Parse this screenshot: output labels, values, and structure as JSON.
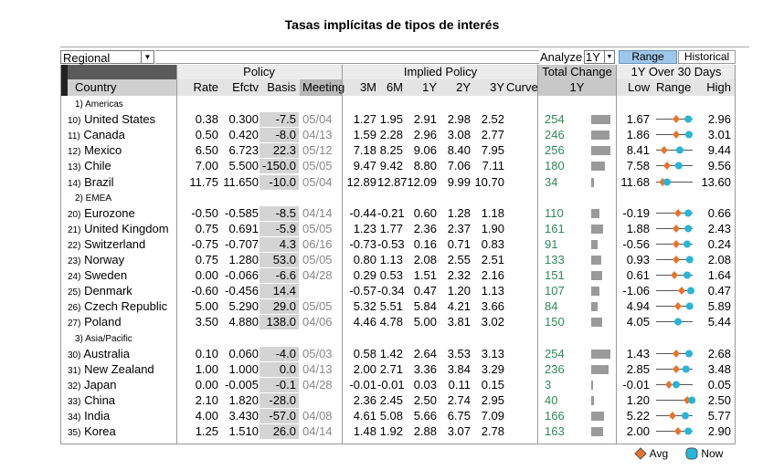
{
  "title": "Tasas implícitas de tipos de interés",
  "toolbar": {
    "region": "Regional",
    "analyze_label": "Analyze",
    "period": "1Y",
    "tab_range": "Range",
    "tab_historical": "Historical"
  },
  "headers": {
    "policy": "Policy",
    "implied": "Implied Policy",
    "total_change": "Total Change",
    "over30": "1Y Over 30 Days",
    "country": "Country",
    "rate": "Rate",
    "efctv": "Efctv",
    "basis": "Basis",
    "meeting": "Meeting",
    "m3": "3M",
    "m6": "6M",
    "y1": "1Y",
    "y2": "2Y",
    "y3": "3Y",
    "curve": "Curve",
    "tc1y": "1Y",
    "low": "Low",
    "range": "Range",
    "high": "High"
  },
  "regions": [
    {
      "label": "1) Americas",
      "rows": [
        {
          "num": "10)",
          "country": "United States",
          "rate": "0.38",
          "efctv": "0.300",
          "basis": "-7.5",
          "meeting": "05/04",
          "m3": "1.27",
          "m6": "1.95",
          "y1": "2.91",
          "y2": "2.98",
          "y3": "2.52",
          "tc": "254",
          "tc_val": 254,
          "low": "1.67",
          "high": "2.96",
          "avg": 0.55,
          "now": 0.88
        },
        {
          "num": "11)",
          "country": "Canada",
          "rate": "0.50",
          "efctv": "0.420",
          "basis": "-8.0",
          "meeting": "04/13",
          "m3": "1.59",
          "m6": "2.28",
          "y1": "2.96",
          "y2": "3.08",
          "y3": "2.77",
          "tc": "246",
          "tc_val": 246,
          "low": "1.86",
          "high": "3.01",
          "avg": 0.55,
          "now": 0.9
        },
        {
          "num": "12)",
          "country": "Mexico",
          "rate": "6.50",
          "efctv": "6.723",
          "basis": "22.3",
          "meeting": "05/12",
          "m3": "7.18",
          "m6": "8.25",
          "y1": "9.06",
          "y2": "8.40",
          "y3": "7.95",
          "tc": "256",
          "tc_val": 256,
          "low": "8.41",
          "high": "9.44",
          "avg": 0.22,
          "now": 0.65
        },
        {
          "num": "13)",
          "country": "Chile",
          "rate": "7.00",
          "efctv": "5.500",
          "basis": "-150.0",
          "meeting": "05/05",
          "m3": "9.47",
          "m6": "9.42",
          "y1": "8.80",
          "y2": "7.06",
          "y3": "7.11",
          "tc": "180",
          "tc_val": 180,
          "low": "7.58",
          "high": "9.56",
          "avg": 0.3,
          "now": 0.62
        },
        {
          "num": "14)",
          "country": "Brazil",
          "rate": "11.75",
          "efctv": "11.650",
          "basis": "-10.0",
          "meeting": "05/04",
          "m3": "12.89",
          "m6": "12.87",
          "y1": "12.09",
          "y2": "9.99",
          "y3": "10.70",
          "tc": "34",
          "tc_val": 34,
          "low": "11.68",
          "high": "13.60",
          "avg": 0.18,
          "now": 0.3
        }
      ]
    },
    {
      "label": "2) EMEA",
      "rows": [
        {
          "num": "20)",
          "country": "Eurozone",
          "rate": "-0.50",
          "efctv": "-0.585",
          "basis": "-8.5",
          "meeting": "04/14",
          "m3": "-0.44",
          "m6": "-0.21",
          "y1": "0.60",
          "y2": "1.28",
          "y3": "1.18",
          "tc": "110",
          "tc_val": 110,
          "low": "-0.19",
          "high": "0.66",
          "avg": 0.6,
          "now": 0.88
        },
        {
          "num": "21)",
          "country": "United Kingdom",
          "rate": "0.75",
          "efctv": "0.691",
          "basis": "-5.9",
          "meeting": "05/05",
          "m3": "1.23",
          "m6": "1.77",
          "y1": "2.36",
          "y2": "2.37",
          "y3": "1.90",
          "tc": "161",
          "tc_val": 161,
          "low": "1.88",
          "high": "2.43",
          "avg": 0.55,
          "now": 0.88
        },
        {
          "num": "22)",
          "country": "Switzerland",
          "rate": "-0.75",
          "efctv": "-0.707",
          "basis": "4.3",
          "meeting": "06/16",
          "m3": "-0.73",
          "m6": "-0.53",
          "y1": "0.16",
          "y2": "0.71",
          "y3": "0.83",
          "tc": "91",
          "tc_val": 91,
          "low": "-0.56",
          "high": "0.24",
          "avg": 0.55,
          "now": 0.85
        },
        {
          "num": "23)",
          "country": "Norway",
          "rate": "0.75",
          "efctv": "1.280",
          "basis": "53.0",
          "meeting": "05/05",
          "m3": "0.80",
          "m6": "1.13",
          "y1": "2.08",
          "y2": "2.55",
          "y3": "2.51",
          "tc": "133",
          "tc_val": 133,
          "low": "0.93",
          "high": "2.08",
          "avg": 0.55,
          "now": 0.92
        },
        {
          "num": "24)",
          "country": "Sweden",
          "rate": "0.00",
          "efctv": "-0.066",
          "basis": "-6.6",
          "meeting": "04/28",
          "m3": "0.29",
          "m6": "0.53",
          "y1": "1.51",
          "y2": "2.32",
          "y3": "2.16",
          "tc": "151",
          "tc_val": 151,
          "low": "0.61",
          "high": "1.64",
          "avg": 0.5,
          "now": 0.85
        },
        {
          "num": "25)",
          "country": "Denmark",
          "rate": "-0.60",
          "efctv": "-0.456",
          "basis": "14.4",
          "meeting": "",
          "m3": "-0.57",
          "m6": "-0.34",
          "y1": "0.47",
          "y2": "1.20",
          "y3": "1.13",
          "tc": "107",
          "tc_val": 107,
          "low": "-1.06",
          "high": "0.47",
          "avg": 0.7,
          "now": 0.95
        },
        {
          "num": "26)",
          "country": "Czech Republic",
          "rate": "5.00",
          "efctv": "5.290",
          "basis": "29.0",
          "meeting": "05/05",
          "m3": "5.32",
          "m6": "5.51",
          "y1": "5.84",
          "y2": "4.21",
          "y3": "3.66",
          "tc": "84",
          "tc_val": 84,
          "low": "4.94",
          "high": "5.89",
          "avg": 0.6,
          "now": 0.92
        },
        {
          "num": "27)",
          "country": "Poland",
          "rate": "3.50",
          "efctv": "4.880",
          "basis": "138.0",
          "meeting": "04/06",
          "m3": "4.46",
          "m6": "4.78",
          "y1": "5.00",
          "y2": "3.81",
          "y3": "3.02",
          "tc": "150",
          "tc_val": 150,
          "low": "4.05",
          "high": "5.44",
          "avg": 0.6,
          "now": 0.6
        }
      ]
    },
    {
      "label": "3) Asia/Pacific",
      "rows": [
        {
          "num": "30)",
          "country": "Australia",
          "rate": "0.10",
          "efctv": "0.060",
          "basis": "-4.0",
          "meeting": "05/03",
          "m3": "0.58",
          "m6": "1.42",
          "y1": "2.64",
          "y2": "3.53",
          "y3": "3.13",
          "tc": "254",
          "tc_val": 254,
          "low": "1.43",
          "high": "2.68",
          "avg": 0.55,
          "now": 0.9
        },
        {
          "num": "31)",
          "country": "New Zealand",
          "rate": "1.00",
          "efctv": "1.000",
          "basis": "0.0",
          "meeting": "04/13",
          "m3": "2.00",
          "m6": "2.71",
          "y1": "3.36",
          "y2": "3.84",
          "y3": "3.29",
          "tc": "236",
          "tc_val": 236,
          "low": "2.85",
          "high": "3.48",
          "avg": 0.55,
          "now": 0.82
        },
        {
          "num": "32)",
          "country": "Japan",
          "rate": "0.00",
          "efctv": "-0.005",
          "basis": "-0.1",
          "meeting": "04/28",
          "m3": "-0.01",
          "m6": "-0.01",
          "y1": "0.03",
          "y2": "0.11",
          "y3": "0.15",
          "tc": "3",
          "tc_val": 3,
          "low": "-0.01",
          "high": "0.05",
          "avg": 0.35,
          "now": 0.55
        },
        {
          "num": "33)",
          "country": "China",
          "rate": "2.10",
          "efctv": "1.820",
          "basis": "-28.0",
          "meeting": "",
          "m3": "2.36",
          "m6": "2.45",
          "y1": "2.50",
          "y2": "2.74",
          "y3": "2.95",
          "tc": "40",
          "tc_val": 40,
          "low": "1.20",
          "high": "2.50",
          "avg": 0.85,
          "now": 0.98
        },
        {
          "num": "34)",
          "country": "India",
          "rate": "4.00",
          "efctv": "3.430",
          "basis": "-57.0",
          "meeting": "04/08",
          "m3": "4.61",
          "m6": "5.08",
          "y1": "5.66",
          "y2": "6.75",
          "y3": "7.09",
          "tc": "166",
          "tc_val": 166,
          "low": "5.22",
          "high": "5.77",
          "avg": 0.45,
          "now": 0.8
        },
        {
          "num": "35)",
          "country": "Korea",
          "rate": "1.25",
          "efctv": "1.510",
          "basis": "26.0",
          "meeting": "04/14",
          "m3": "1.48",
          "m6": "1.92",
          "y1": "2.88",
          "y2": "3.07",
          "y3": "2.78",
          "tc": "163",
          "tc_val": 163,
          "low": "2.00",
          "high": "2.90",
          "avg": 0.6,
          "now": 0.88
        }
      ]
    }
  ],
  "legend": {
    "avg": "Avg",
    "now": "Now",
    "avg_color": "#e8742a",
    "now_color": "#27b5d8"
  }
}
